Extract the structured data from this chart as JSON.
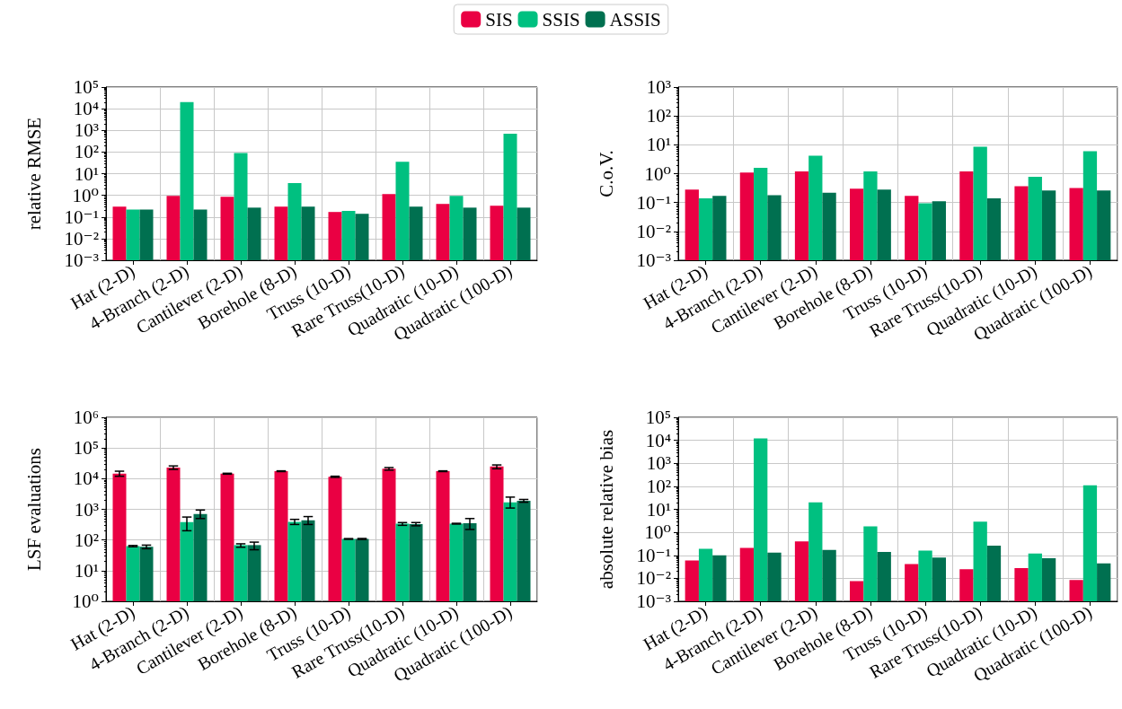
{
  "chart_data": [
    {
      "type": "bar",
      "ylabel": "relative RMSE",
      "log": "y",
      "grid": true,
      "legend": "top",
      "categories": [
        "Hat (2-D)",
        "4-Branch (2-D)",
        "Cantilever (2-D)",
        "Borehole (8-D)",
        "Truss (10-D)",
        "Rare Truss(10-D)",
        "Quadratic (10-D)",
        "Quadratic (100-D)"
      ],
      "ylim": [
        0.001,
        100000
      ],
      "yticks": [
        {
          "value": 0.001,
          "label": "10⁻³"
        },
        {
          "value": 0.01,
          "label": "10⁻²"
        },
        {
          "value": 0.1,
          "label": "10⁻¹"
        },
        {
          "value": 1,
          "label": "10⁰"
        },
        {
          "value": 10,
          "label": "10¹"
        },
        {
          "value": 100,
          "label": "10²"
        },
        {
          "value": 1000,
          "label": "10³"
        },
        {
          "value": 10000,
          "label": "10⁴"
        },
        {
          "value": 100000,
          "label": "10⁵"
        }
      ],
      "series": [
        {
          "name": "SIS",
          "color": "#ea0043",
          "values": [
            0.3,
            0.95,
            0.85,
            0.3,
            0.17,
            1.15,
            0.4,
            0.33
          ]
        },
        {
          "name": "SSIS",
          "color": "#00c080",
          "values": [
            0.22,
            20000,
            90,
            3.7,
            0.19,
            35,
            0.95,
            700
          ]
        },
        {
          "name": "ASSIS",
          "color": "#007050",
          "values": [
            0.22,
            0.22,
            0.27,
            0.3,
            0.14,
            0.3,
            0.27,
            0.27
          ]
        }
      ]
    },
    {
      "type": "bar",
      "ylabel": "C.o.V.",
      "log": "y",
      "grid": true,
      "categories": [
        "Hat (2-D)",
        "4-Branch (2-D)",
        "Cantilever (2-D)",
        "Borehole (8-D)",
        "Truss (10-D)",
        "Rare Truss(10-D)",
        "Quadratic (10-D)",
        "Quadratic (100-D)"
      ],
      "ylim": [
        0.001,
        1000
      ],
      "yticks": [
        {
          "value": 0.001,
          "label": "10⁻³"
        },
        {
          "value": 0.01,
          "label": "10⁻²"
        },
        {
          "value": 0.1,
          "label": "10⁻¹"
        },
        {
          "value": 1,
          "label": "10⁰"
        },
        {
          "value": 10,
          "label": "10¹"
        },
        {
          "value": 100,
          "label": "10²"
        },
        {
          "value": 1000,
          "label": "10³"
        }
      ],
      "series": [
        {
          "color": "#ea0043",
          "values": [
            0.28,
            1.1,
            1.2,
            0.3,
            0.17,
            1.2,
            0.37,
            0.32
          ]
        },
        {
          "color": "#00c080",
          "values": [
            0.14,
            1.6,
            4.2,
            1.2,
            0.095,
            8.5,
            0.78,
            6
          ]
        },
        {
          "color": "#007050",
          "values": [
            0.17,
            0.18,
            0.22,
            0.28,
            0.11,
            0.14,
            0.26,
            0.26
          ]
        }
      ]
    },
    {
      "type": "bar",
      "ylabel": "LSF evaluations",
      "log": "y",
      "grid": true,
      "categories": [
        "Hat (2-D)",
        "4-Branch (2-D)",
        "Cantilever (2-D)",
        "Borehole (8-D)",
        "Truss (10-D)",
        "Rare Truss(10-D)",
        "Quadratic (10-D)",
        "Quadratic (100-D)"
      ],
      "ylim": [
        1,
        1000000
      ],
      "yticks": [
        {
          "value": 1,
          "label": "10⁰"
        },
        {
          "value": 10,
          "label": "10¹"
        },
        {
          "value": 100,
          "label": "10²"
        },
        {
          "value": 1000,
          "label": "10³"
        },
        {
          "value": 10000,
          "label": "10⁴"
        },
        {
          "value": 100000,
          "label": "10⁵"
        },
        {
          "value": 1000000,
          "label": "10⁶"
        }
      ],
      "series": [
        {
          "color": "#ea0043",
          "values": [
            14500,
            23000,
            14500,
            17500,
            11500,
            21000,
            17500,
            25000
          ],
          "errors": [
            [
              12000,
              17500
            ],
            [
              20000,
              26000
            ],
            [
              14000,
              15000
            ],
            [
              17000,
              18000
            ],
            [
              11000,
              12000
            ],
            [
              19000,
              23000
            ],
            [
              17000,
              18000
            ],
            [
              21000,
              28000
            ]
          ]
        },
        {
          "color": "#00c080",
          "values": [
            63,
            380,
            68,
            390,
            108,
            340,
            340,
            1700
          ],
          "errors": [
            [
              60,
              66
            ],
            [
              200,
              560
            ],
            [
              58,
              75
            ],
            [
              320,
              470
            ],
            [
              105,
              111
            ],
            [
              300,
              370
            ],
            [
              330,
              350
            ],
            [
              1100,
              2500
            ]
          ]
        },
        {
          "color": "#007050",
          "values": [
            60,
            700,
            68,
            440,
            108,
            330,
            350,
            1900
          ],
          "errors": [
            [
              52,
              68
            ],
            [
              500,
              950
            ],
            [
              48,
              85
            ],
            [
              320,
              580
            ],
            [
              104,
              112
            ],
            [
              290,
              370
            ],
            [
              220,
              500
            ],
            [
              1700,
              2100
            ]
          ]
        }
      ]
    },
    {
      "type": "bar",
      "ylabel": "absolute relative bias",
      "log": "y",
      "grid": true,
      "categories": [
        "Hat (2-D)",
        "4-Branch (2-D)",
        "Cantilever (2-D)",
        "Borehole (8-D)",
        "Truss (10-D)",
        "Rare Truss(10-D)",
        "Quadratic (10-D)",
        "Quadratic (100-D)"
      ],
      "ylim": [
        0.001,
        100000
      ],
      "yticks": [
        {
          "value": 0.001,
          "label": "10⁻³"
        },
        {
          "value": 0.01,
          "label": "10⁻²"
        },
        {
          "value": 0.1,
          "label": "10⁻¹"
        },
        {
          "value": 1,
          "label": "10⁰"
        },
        {
          "value": 10,
          "label": "10¹"
        },
        {
          "value": 100,
          "label": "10²"
        },
        {
          "value": 1000,
          "label": "10³"
        },
        {
          "value": 10000,
          "label": "10⁴"
        },
        {
          "value": 100000,
          "label": "10⁵"
        }
      ],
      "series": [
        {
          "color": "#ea0043",
          "values": [
            0.06,
            0.21,
            0.4,
            0.0075,
            0.042,
            0.025,
            0.028,
            0.0085
          ]
        },
        {
          "color": "#00c080",
          "values": [
            0.19,
            12000,
            20,
            1.8,
            0.16,
            2.9,
            0.12,
            110
          ]
        },
        {
          "color": "#007050",
          "values": [
            0.1,
            0.13,
            0.17,
            0.14,
            0.08,
            0.26,
            0.075,
            0.045
          ]
        }
      ]
    }
  ]
}
